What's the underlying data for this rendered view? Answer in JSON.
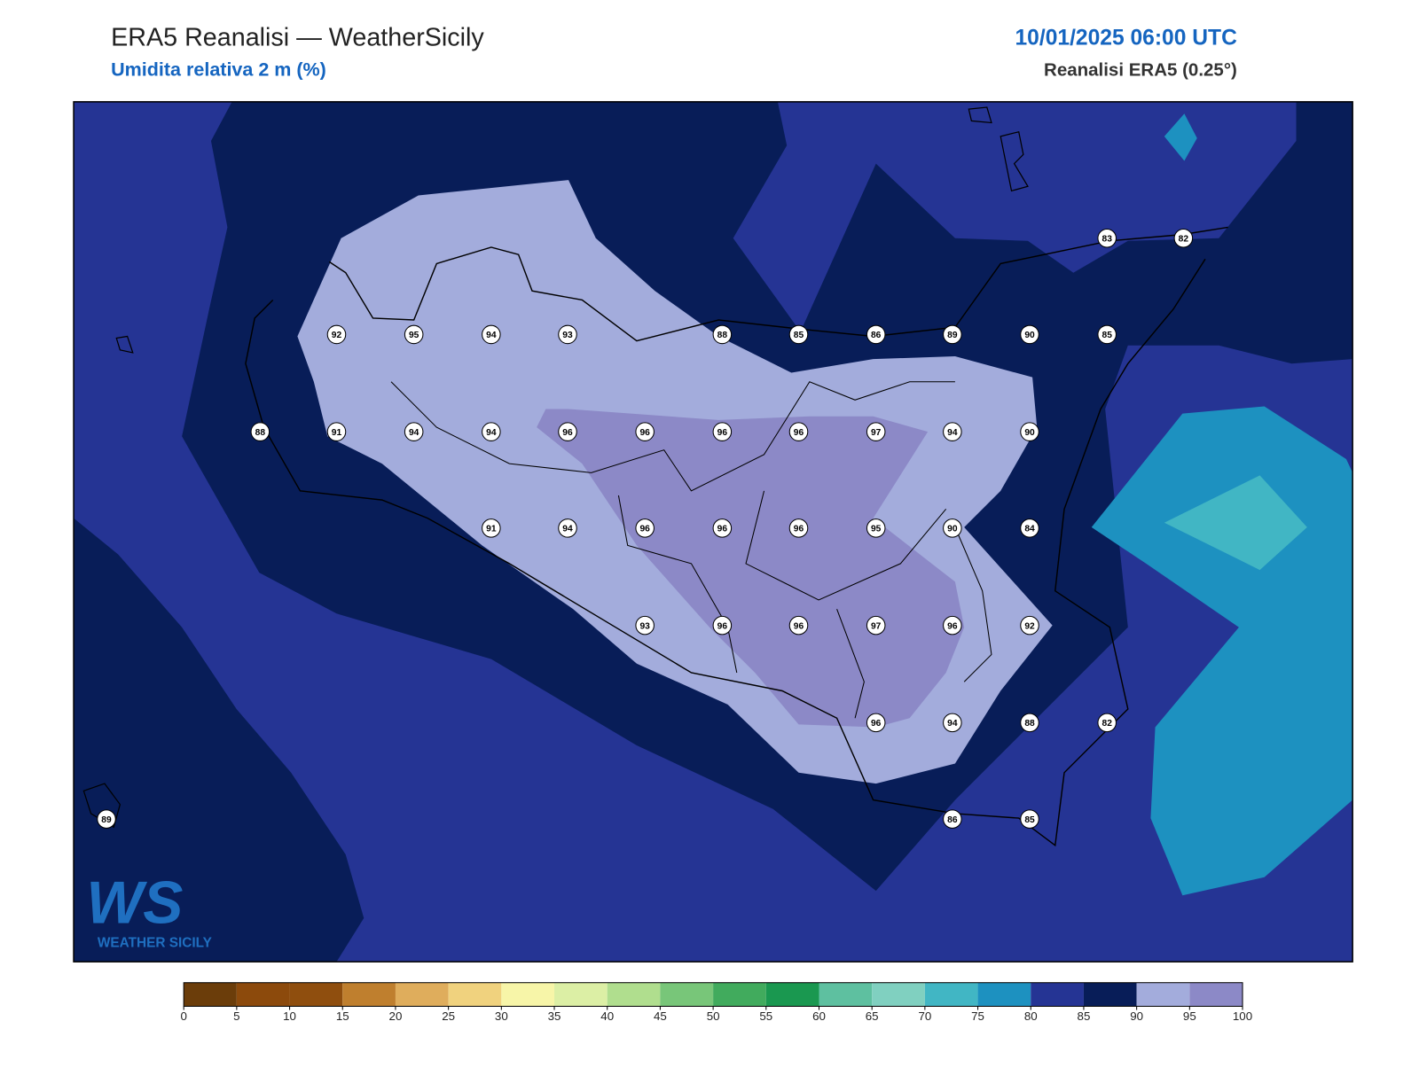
{
  "header": {
    "title": "ERA5 Reanalisi — WeatherSicily",
    "subtitle": "Umidita relativa 2 m (%)",
    "datetime": "10/01/2025 06:00 UTC",
    "source": "Reanalisi ERA5 (0.25°)"
  },
  "stations": {
    "values": [
      83,
      82,
      92,
      95,
      94,
      93,
      88,
      85,
      86,
      89,
      90,
      85,
      88,
      91,
      94,
      94,
      96,
      96,
      96,
      96,
      97,
      94,
      90,
      91,
      94,
      96,
      96,
      96,
      95,
      90,
      84,
      93,
      96,
      96,
      97,
      96,
      92,
      96,
      94,
      88,
      82,
      89,
      86,
      85
    ]
  },
  "colorbar": {
    "ticks": [
      0,
      5,
      10,
      15,
      20,
      25,
      30,
      35,
      40,
      45,
      50,
      55,
      60,
      65,
      70,
      75,
      80,
      85,
      90,
      95,
      100
    ],
    "colors": [
      "#6b3d0a",
      "#8c4a0c",
      "#8f4e0e",
      "#bf7f2e",
      "#dfad5c",
      "#f0d27e",
      "#f7f5a8",
      "#dcefa5",
      "#b0de8e",
      "#78c679",
      "#41ab5d",
      "#1a9850",
      "#5ec0a0",
      "#80d0c0",
      "#41b6c4",
      "#1d91c0",
      "#253494",
      "#081d58",
      "#a3acdc",
      "#8c89c7"
    ]
  },
  "logo": {
    "mark": "WS",
    "name": "WEATHER SICILY"
  }
}
